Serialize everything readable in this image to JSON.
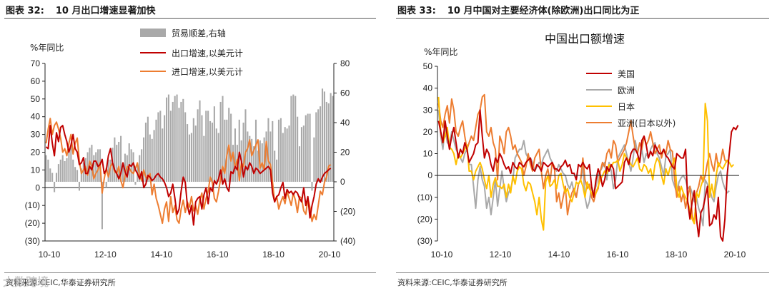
{
  "left": {
    "figure_label": "图表 32:",
    "figure_title": "10 月出口增速显著加快",
    "source": "资料来源:CEIC,华泰证券研究所",
    "watermark": "大数跨境"
  },
  "right": {
    "figure_label": "图表 33:",
    "figure_title": "10 月中国对主要经济体(除欧洲)出口同比为正",
    "source": "资料来源:CEIC,华泰证券研究所"
  },
  "chart_data": [
    {
      "type": "bar+line",
      "title": "",
      "ylabel": "%年同比",
      "ylim": [
        -30,
        70
      ],
      "yticks": [
        70,
        60,
        50,
        40,
        30,
        20,
        10,
        0,
        -10,
        -20,
        -30
      ],
      "ytick_labels": [
        "70",
        "60",
        "50",
        "40",
        "30",
        "20",
        "10",
        "0",
        "(10)",
        "(20)",
        "(30)"
      ],
      "y2lim": [
        -40,
        80
      ],
      "y2ticks": [
        80,
        60,
        40,
        20,
        0,
        -20,
        -40
      ],
      "y2tick_labels": [
        "80",
        "60",
        "40",
        "20",
        "0",
        "(20)",
        "(40)"
      ],
      "xtick_labels": [
        "10-10",
        "12-10",
        "14-10",
        "16-10",
        "18-10",
        "20-10"
      ],
      "legend_position": "top-center",
      "colors": {
        "trade_balance": "#a9a9a9",
        "export": "#c00000",
        "import": "#ed7d31"
      },
      "series": [
        {
          "name": "贸易顺差,右轴",
          "axis": "right",
          "kind": "bar",
          "values": [
            18,
            15,
            9,
            6,
            -7,
            6,
            12,
            15,
            18,
            14,
            16,
            20,
            24,
            15,
            10,
            8,
            -6,
            9,
            13,
            16,
            20,
            23,
            25,
            18,
            20,
            22,
            22,
            -32,
            0,
            -4,
            15,
            15,
            23,
            30,
            25,
            27,
            31,
            12,
            19,
            18,
            26,
            22,
            20,
            -2,
            12,
            18,
            22,
            30,
            40,
            44,
            32,
            29,
            35,
            42,
            47,
            48,
            36,
            45,
            57,
            59,
            48,
            54,
            58,
            59,
            50,
            54,
            56,
            47,
            39,
            32,
            33,
            43,
            38,
            49,
            55,
            45,
            31,
            48,
            48,
            41,
            40,
            51,
            36,
            33,
            54,
            58,
            42,
            42,
            50,
            46,
            25,
            36,
            25,
            42,
            28,
            40,
            49,
            34,
            31,
            29,
            24,
            42,
            21,
            28,
            26,
            30,
            34,
            43,
            34,
            41,
            21,
            15,
            42,
            43,
            33,
            37,
            36,
            38,
            58,
            59,
            58,
            44,
            24,
            37,
            38,
            45,
            46,
            46,
            -6,
            30,
            47,
            49,
            51,
            63,
            61,
            54,
            53,
            60,
            58
          ]
        },
        {
          "name": "出口增速,以美元计",
          "axis": "left",
          "kind": "line",
          "values": [
            23,
            22,
            35,
            25,
            18,
            31,
            26,
            34,
            35,
            30,
            26,
            20,
            24,
            30,
            22,
            20,
            13,
            14,
            17,
            8,
            8,
            12,
            10,
            15,
            15,
            12,
            13,
            16,
            8,
            10,
            18,
            22,
            14,
            10,
            8,
            5,
            8,
            14,
            9,
            6,
            13,
            12,
            14,
            10,
            8,
            5,
            9,
            0,
            2,
            7,
            6,
            4,
            5,
            7,
            8,
            6,
            5,
            3,
            0,
            -5,
            -3,
            2,
            -6,
            -15,
            -12,
            -2,
            6,
            3,
            -10,
            -15,
            -10,
            -21,
            -8,
            -6,
            -5,
            -12,
            -4,
            0,
            -9,
            0,
            -2,
            4,
            2,
            5,
            10,
            2,
            5,
            0,
            -2,
            9,
            8,
            12,
            10,
            20,
            15,
            6,
            12,
            10,
            14,
            12,
            8,
            11,
            10,
            8,
            9,
            10,
            11,
            12,
            10,
            -3,
            -8,
            -5,
            -4,
            0,
            3,
            -6,
            -1,
            -3,
            -2,
            -4,
            -2,
            -3,
            -6,
            -8,
            0,
            -10,
            -5,
            -17,
            -10,
            -5,
            2,
            5,
            3,
            6,
            8,
            9,
            10,
            11
          ]
        },
        {
          "name": "进口增速,以美元计",
          "axis": "left",
          "kind": "line",
          "values": [
            25,
            33,
            39,
            30,
            35,
            37,
            33,
            28,
            20,
            22,
            18,
            25,
            30,
            19,
            25,
            28,
            15,
            8,
            10,
            12,
            7,
            15,
            12,
            5,
            8,
            10,
            14,
            -3,
            5,
            11,
            6,
            12,
            14,
            9,
            8,
            12,
            4,
            0,
            7,
            12,
            11,
            9,
            8,
            11,
            14,
            7,
            4,
            10,
            6,
            5,
            8,
            -4,
            2,
            -6,
            -10,
            -15,
            -20,
            -12,
            -8,
            -19,
            -5,
            -14,
            -10,
            -18,
            -20,
            -12,
            -7,
            -14,
            -8,
            -11,
            -5,
            -13,
            -10,
            -15,
            -7,
            -3,
            -12,
            -6,
            -2,
            6,
            3,
            -6,
            -8,
            -2,
            5,
            12,
            8,
            18,
            24,
            15,
            20,
            11,
            16,
            4,
            14,
            12,
            20,
            22,
            27,
            18,
            21,
            24,
            27,
            11,
            14,
            10,
            26,
            15,
            13,
            3,
            -8,
            -5,
            -12,
            -8,
            -5,
            -9,
            -2,
            -6,
            -10,
            -3,
            -7,
            -14,
            -5,
            -6,
            -13,
            -15,
            -6,
            -11,
            -19,
            -15,
            -18,
            -10,
            -2,
            -4,
            3,
            6,
            12,
            13
          ]
        }
      ]
    },
    {
      "type": "line",
      "title": "中国出口额增速",
      "ylabel": "%年同比",
      "ylim": [
        -30,
        50
      ],
      "yticks": [
        50,
        40,
        30,
        20,
        10,
        0,
        -10,
        -20,
        -30
      ],
      "ytick_labels": [
        "50",
        "40",
        "30",
        "20",
        "10",
        "0",
        "(10)",
        "(20)",
        "(30)"
      ],
      "xtick_labels": [
        "10-10",
        "12-10",
        "14-10",
        "16-10",
        "18-10",
        "20-10"
      ],
      "legend_position": "top-right",
      "colors": {
        "美国": "#c00000",
        "欧洲": "#a9a9a9",
        "日本": "#ffc000",
        "亚洲": "#ed7d31"
      },
      "series": [
        {
          "name": "美国",
          "values": [
            25,
            20,
            15,
            25,
            18,
            12,
            18,
            22,
            15,
            8,
            12,
            10,
            15,
            12,
            6,
            8,
            10,
            14,
            15,
            30,
            18,
            8,
            12,
            10,
            5,
            2,
            8,
            6,
            10,
            8,
            5,
            3,
            4,
            1,
            6,
            4,
            3,
            6,
            5,
            4,
            6,
            7,
            8,
            3,
            2,
            5,
            4,
            2,
            6,
            5,
            4,
            5,
            6,
            3,
            3,
            2,
            4,
            5,
            7,
            4,
            5,
            1,
            1,
            -2,
            5,
            4,
            6,
            4,
            3,
            5,
            -5,
            -10,
            -2,
            3,
            0,
            -5,
            -2,
            4,
            2,
            5,
            3,
            -6,
            -5,
            -4,
            -3,
            6,
            8,
            5,
            10,
            12,
            12,
            10,
            6,
            16,
            18,
            14,
            8,
            11,
            9,
            14,
            12,
            10,
            10,
            12,
            9,
            8,
            6,
            4,
            3,
            10,
            9,
            8,
            8,
            12,
            -12,
            -20,
            -12,
            -7,
            -20,
            -28,
            -17,
            -15,
            -10,
            -5,
            -23,
            -22,
            -18,
            -20,
            -10,
            -28,
            -30,
            -20,
            0,
            10,
            20,
            22,
            21,
            23
          ]
        },
        {
          "name": "欧洲",
          "values": [
            30,
            18,
            12,
            22,
            15,
            14,
            20,
            16,
            12,
            10,
            8,
            6,
            10,
            12,
            5,
            5,
            -5,
            -15,
            -2,
            4,
            -2,
            -5,
            -15,
            -10,
            -18,
            -10,
            -2,
            -14,
            -6,
            2,
            -6,
            -12,
            -8,
            -6,
            -2,
            8,
            10,
            12,
            12,
            16,
            10,
            8,
            8,
            6,
            2,
            4,
            6,
            5,
            8,
            10,
            12,
            8,
            6,
            4,
            2,
            5,
            3,
            1,
            0,
            -4,
            -6,
            -3,
            -8,
            -10,
            -4,
            -2,
            4,
            -10,
            -15,
            -12,
            -5,
            -8,
            -5,
            0,
            2,
            4,
            6,
            -2,
            6,
            2,
            -6,
            -2,
            8,
            10,
            12,
            14,
            10,
            6,
            2,
            8,
            16,
            10,
            6,
            12,
            6,
            10,
            8,
            12,
            14,
            15,
            10,
            8,
            4,
            0,
            9,
            10,
            12,
            -2,
            -5,
            -8,
            -3,
            -1,
            0,
            -2,
            -6,
            -5,
            -8,
            -12,
            -10,
            -15,
            -18,
            -23,
            -2,
            -4,
            -6,
            -10,
            -12,
            -5,
            0,
            2,
            -3,
            -6,
            -8,
            -7
          ]
        },
        {
          "name": "日本",
          "values": [
            36,
            20,
            15,
            18,
            22,
            13,
            12,
            10,
            5,
            10,
            8,
            10,
            12,
            14,
            2,
            2,
            -2,
            2,
            4,
            6,
            3,
            -2,
            -6,
            0,
            -10,
            -4,
            -1,
            -5,
            -5,
            -6,
            -4,
            -10,
            -4,
            -8,
            0,
            -4,
            2,
            4,
            3,
            -4,
            -7,
            -3,
            -4,
            -8,
            -12,
            -18,
            -10,
            -20,
            -25,
            -3,
            0,
            -5,
            -4,
            -2,
            -6,
            0,
            1,
            -4,
            -8,
            -6,
            -10,
            -12,
            -8,
            -3,
            -4,
            -2,
            -5,
            -10,
            -3,
            -6,
            -8,
            -10,
            -8,
            -5,
            -2,
            0,
            2,
            1,
            5,
            4,
            6,
            6,
            7,
            2,
            5,
            10,
            8,
            7,
            5,
            4,
            6,
            8,
            3,
            2,
            5,
            4,
            1,
            3,
            -2,
            5,
            8,
            6,
            0,
            -4,
            3,
            0,
            4,
            5,
            8,
            -6,
            -10,
            -5,
            -8,
            -10,
            -12,
            -16,
            -20,
            -22,
            -8,
            -10,
            -5,
            -2,
            33,
            25,
            -10,
            -4,
            -10,
            0,
            6,
            4,
            3,
            5,
            7,
            6,
            4,
            5
          ]
        },
        {
          "name": "亚洲(日本以外)",
          "values": [
            33,
            25,
            22,
            28,
            32,
            24,
            35,
            30,
            20,
            18,
            22,
            25,
            18,
            12,
            15,
            18,
            16,
            22,
            28,
            30,
            36,
            37,
            20,
            18,
            22,
            15,
            12,
            -2,
            18,
            15,
            10,
            20,
            22,
            18,
            12,
            14,
            10,
            8,
            6,
            0,
            4,
            10,
            5,
            2,
            8,
            10,
            12,
            2,
            -6,
            0,
            3,
            -3,
            6,
            4,
            -12,
            -8,
            -15,
            -10,
            -5,
            -18,
            -12,
            -8,
            -6,
            -10,
            -4,
            -2,
            8,
            -2,
            -6,
            -4,
            -10,
            -12,
            -8,
            -6,
            2,
            6,
            4,
            10,
            12,
            8,
            16,
            14,
            6,
            8,
            10,
            12,
            15,
            20,
            25,
            18,
            12,
            10,
            15,
            12,
            18,
            14,
            16,
            20,
            15,
            10,
            12,
            14,
            8,
            12,
            10,
            16,
            12,
            11,
            -2,
            -10,
            -5,
            -12,
            -8,
            -15,
            -10,
            -5,
            -18,
            -22,
            -8,
            -5,
            0,
            -3,
            0,
            6,
            10,
            5,
            2,
            10,
            4,
            6,
            12,
            7,
            6
          ]
        }
      ]
    }
  ]
}
